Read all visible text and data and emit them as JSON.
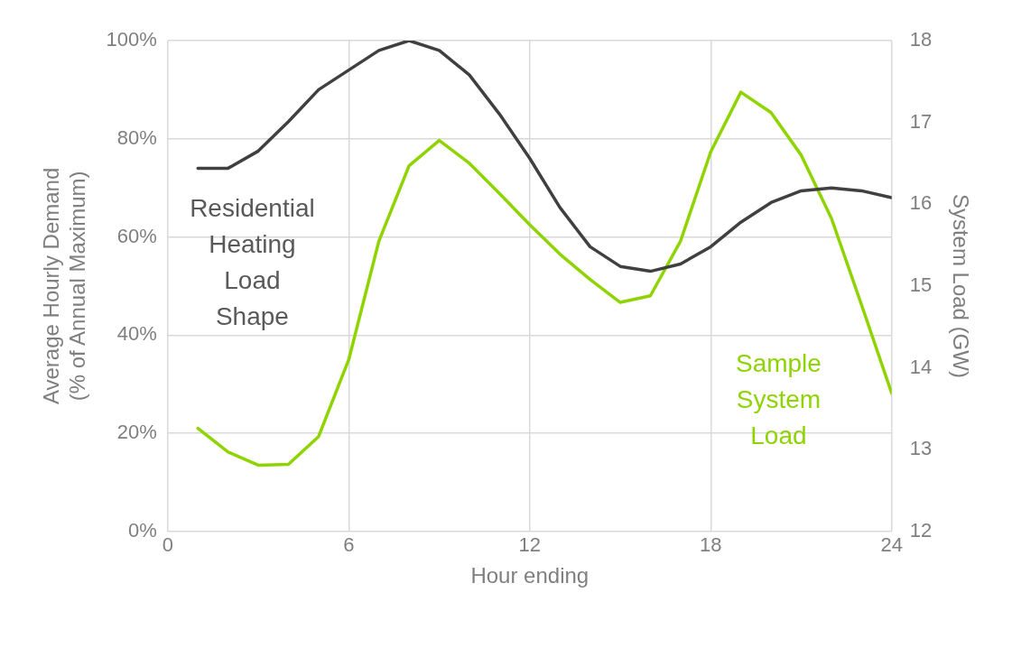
{
  "chart_data": {
    "type": "line",
    "xlabel": "Hour ending",
    "ylabel": "Average Hourly Demand (% of Annual Maximum)",
    "y2label": "System Load (GW)",
    "x": [
      1,
      2,
      3,
      4,
      5,
      6,
      7,
      8,
      9,
      10,
      11,
      12,
      13,
      14,
      15,
      16,
      17,
      18,
      19,
      20,
      21,
      22,
      23,
      24
    ],
    "xlim": [
      0,
      24
    ],
    "xticks": [
      0,
      6,
      12,
      18,
      24
    ],
    "ylim": [
      0,
      100
    ],
    "yticks": [
      {
        "value": 0,
        "label": "0%"
      },
      {
        "value": 20,
        "label": "20%"
      },
      {
        "value": 40,
        "label": "40%"
      },
      {
        "value": 60,
        "label": "60%"
      },
      {
        "value": 80,
        "label": "80%"
      },
      {
        "value": 100,
        "label": "100%"
      }
    ],
    "y2lim": [
      12,
      18
    ],
    "y2ticks": [
      12,
      13,
      14,
      15,
      16,
      17,
      18
    ],
    "grid": true,
    "legend": false,
    "marker": "none",
    "line_style": "solid",
    "series": [
      {
        "name": "Residential Heating Load Shape",
        "color": "#404040",
        "values": [
          74,
          74,
          77.5,
          83.5,
          90,
          94,
          98,
          100,
          98,
          93,
          85,
          76,
          66,
          58,
          54,
          53,
          54.5,
          58,
          63,
          67,
          69.4,
          70,
          69.4,
          68
        ]
      },
      {
        "name": "Sample System Load",
        "color": "#8fd400",
        "axis": "y2",
        "values": [
          13.26,
          12.97,
          12.81,
          12.82,
          13.16,
          14.1,
          15.55,
          16.47,
          16.78,
          16.5,
          16.13,
          15.75,
          15.39,
          15.08,
          14.8,
          14.88,
          15.55,
          16.64,
          17.37,
          17.12,
          16.6,
          15.83,
          14.77,
          13.69
        ]
      }
    ]
  }
}
